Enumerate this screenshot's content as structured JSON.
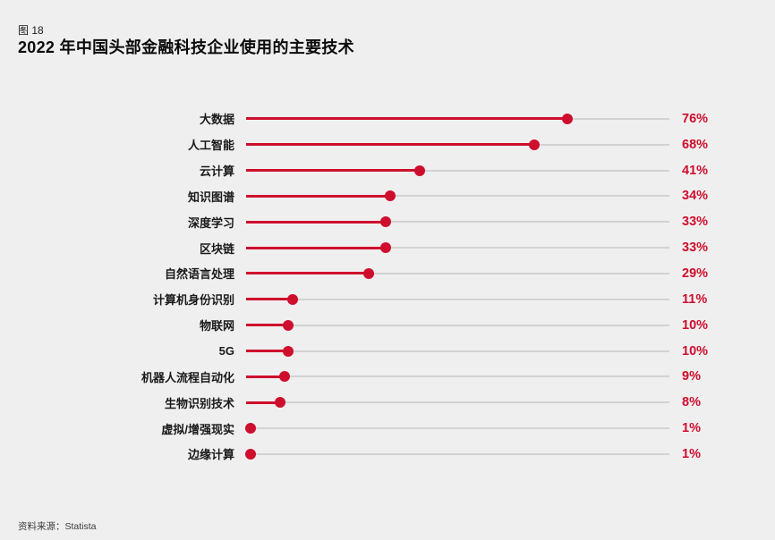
{
  "header": {
    "figure_label": "图 18",
    "title": "2022 年中国头部金融科技企业使用的主要技术"
  },
  "footer": {
    "source_label": "资料来源：Statista"
  },
  "colors": {
    "accent_red": "#CE0E2D",
    "track_gray": "#D3D2D2",
    "background": "#F0EFEF",
    "text_dark": "#1A1A1A"
  },
  "chart_data": {
    "type": "bar",
    "subtype": "horizontal-lollipop",
    "title": "2022 年中国头部金融科技企业使用的主要技术",
    "categories": [
      "大数据",
      "人工智能",
      "云计算",
      "知识图谱",
      "深度学习",
      "区块链",
      "自然语言处理",
      "计算机身份识别",
      "物联网",
      "5G",
      "机器人流程自动化",
      "生物识别技术",
      "虚拟/增强现实",
      "边缘计算"
    ],
    "values": [
      76,
      68,
      41,
      34,
      33,
      33,
      29,
      11,
      10,
      10,
      9,
      8,
      1,
      1
    ],
    "value_labels": [
      "76%",
      "68%",
      "41%",
      "34%",
      "33%",
      "33%",
      "29%",
      "11%",
      "10%",
      "10%",
      "9%",
      "8%",
      "1%",
      "1%"
    ],
    "value_suffix": "%",
    "xlabel": "",
    "ylabel": "",
    "xlim": [
      0,
      100
    ],
    "grid": false,
    "legend": false
  }
}
